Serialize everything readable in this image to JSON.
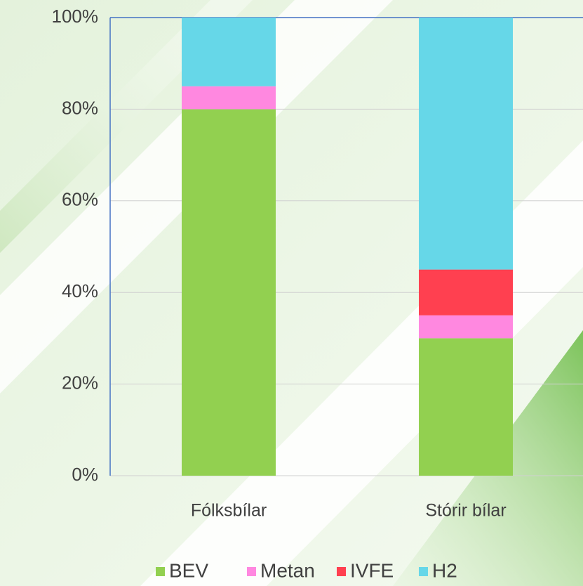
{
  "chart_data": {
    "type": "stacked_bar",
    "categories": [
      "Fólksbílar",
      "Stórir bílar"
    ],
    "series": [
      {
        "name": "BEV",
        "color": "#92d050",
        "values": [
          80,
          30
        ]
      },
      {
        "name": "Metan",
        "color": "#ff88e0",
        "values": [
          5,
          5
        ]
      },
      {
        "name": "IVFE",
        "color": "#ff4050",
        "values": [
          0,
          10
        ]
      },
      {
        "name": "H2",
        "color": "#66d7e8",
        "values": [
          15,
          55
        ]
      }
    ],
    "ylim": [
      0,
      100
    ],
    "yticks": [
      {
        "value": 0,
        "label": "0%"
      },
      {
        "value": 20,
        "label": "20%"
      },
      {
        "value": 40,
        "label": "40%"
      },
      {
        "value": 60,
        "label": "60%"
      },
      {
        "value": 80,
        "label": "80%"
      },
      {
        "value": 100,
        "label": "100%"
      }
    ],
    "grid": true,
    "legend": "bottom"
  }
}
